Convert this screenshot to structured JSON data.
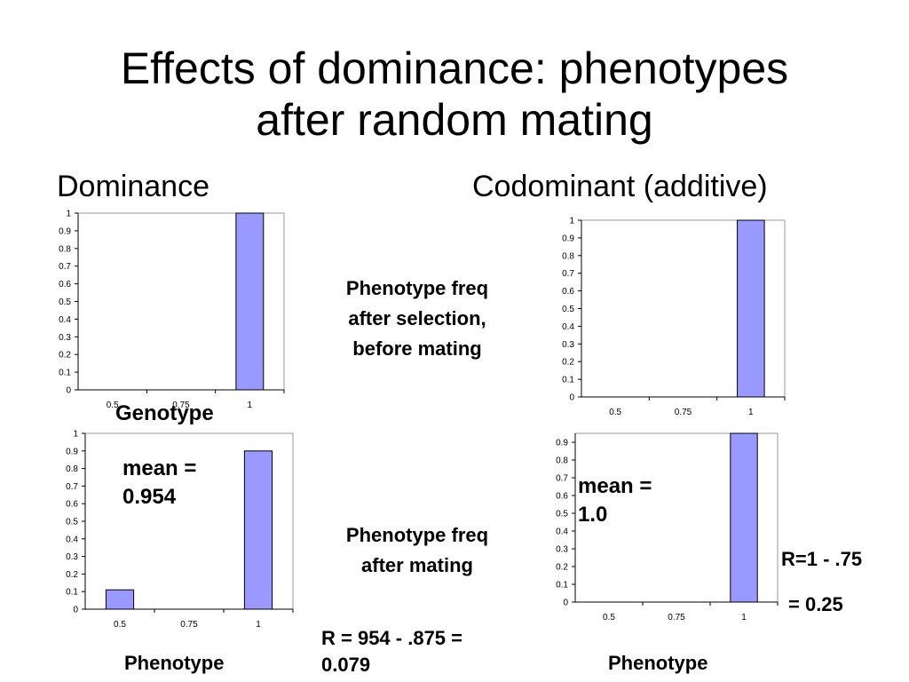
{
  "slide": {
    "title_line1": "Effects of dominance:  phenotypes",
    "title_line2": "after random mating",
    "left_heading": "Dominance",
    "right_heading": "Codominant (additive)",
    "mid_label_top": "Phenotype freq\nafter selection,\nbefore mating",
    "mid_label_bottom": "Phenotype freq\nafter mating",
    "genotype_label": "Genotype",
    "phenotype_label_left": "Phenotype",
    "phenotype_label_right": "Phenotype",
    "mean_left": "mean =\n0.954",
    "mean_right": "mean =\n1.0",
    "r_left": "R = 954 - .875 =\n0.079",
    "r_right_line1": "R=1 - .75",
    "r_right_line2": "= 0.25"
  },
  "colors": {
    "bar_fill": "#9999ff",
    "bar_stroke": "#000000",
    "axis": "#000000"
  },
  "chart_data": [
    {
      "id": "dominance-genotype",
      "type": "bar",
      "categories": [
        "0.5",
        "0.75",
        "1"
      ],
      "values": [
        0,
        0,
        1.0
      ],
      "xlabel": "Genotype",
      "ylabel": "",
      "ylim": [
        0,
        1
      ],
      "yticks": [
        "0",
        "0.1",
        "0.2",
        "0.3",
        "0.4",
        "0.5",
        "0.6",
        "0.7",
        "0.8",
        "0.9",
        "1"
      ],
      "grid": false
    },
    {
      "id": "codominant-genotype",
      "type": "bar",
      "categories": [
        "0.5",
        "0.75",
        "1"
      ],
      "values": [
        0,
        0,
        1.0
      ],
      "xlabel": "",
      "ylabel": "",
      "ylim": [
        0,
        1
      ],
      "yticks": [
        "0",
        "0.1",
        "0.2",
        "0.3",
        "0.4",
        "0.5",
        "0.6",
        "0.7",
        "0.8",
        "0.9",
        "1"
      ],
      "grid": false
    },
    {
      "id": "dominance-phenotype",
      "type": "bar",
      "categories": [
        "0.5",
        "0.75",
        "1"
      ],
      "values": [
        0.11,
        0,
        0.9
      ],
      "xlabel": "Phenotype",
      "ylabel": "",
      "ylim": [
        0,
        1
      ],
      "yticks": [
        "0",
        "0.1",
        "0.2",
        "0.3",
        "0.4",
        "0.5",
        "0.6",
        "0.7",
        "0.8",
        "0.9",
        "1"
      ],
      "grid": false
    },
    {
      "id": "codominant-phenotype",
      "type": "bar",
      "categories": [
        "0.5",
        "0.75",
        "1"
      ],
      "values": [
        0,
        0,
        1.0
      ],
      "xlabel": "Phenotype",
      "ylabel": "",
      "ylim": [
        0,
        0.95
      ],
      "yticks": [
        "0",
        "0.1",
        "0.2",
        "0.3",
        "0.4",
        "0.5",
        "0.6",
        "0.7",
        "0.8",
        "0.9"
      ],
      "grid": false
    }
  ]
}
